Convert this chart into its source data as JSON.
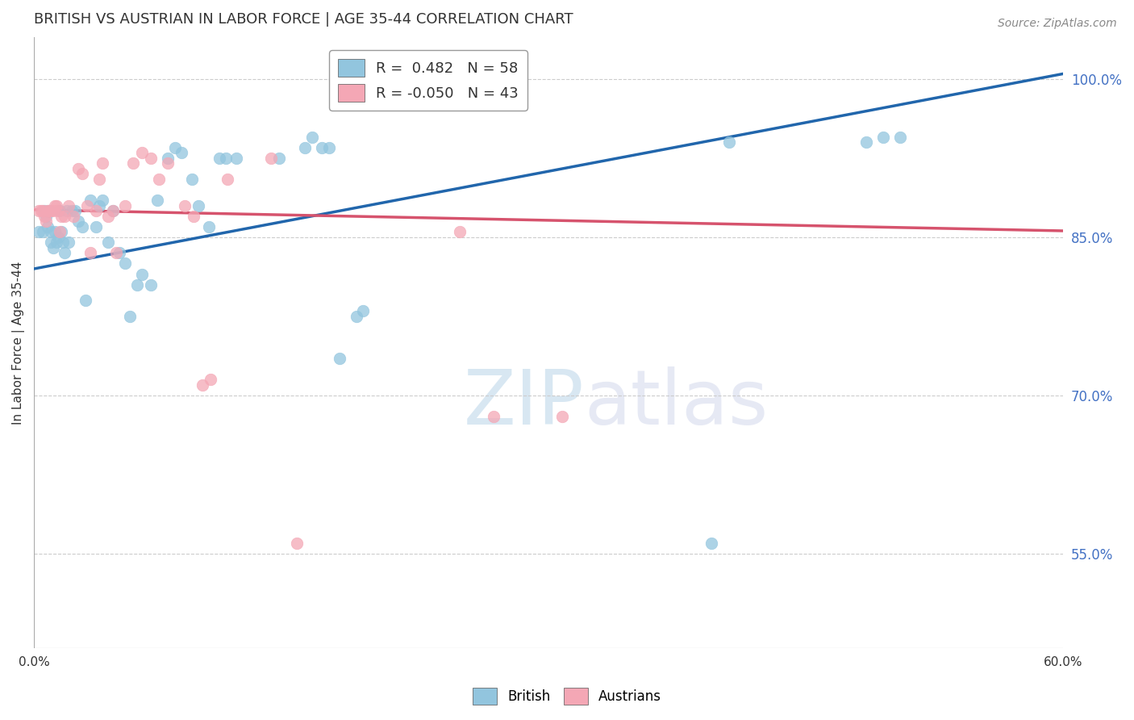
{
  "title": "BRITISH VS AUSTRIAN IN LABOR FORCE | AGE 35-44 CORRELATION CHART",
  "source": "Source: ZipAtlas.com",
  "ylabel": "In Labor Force | Age 35-44",
  "xlim": [
    0.0,
    0.6
  ],
  "ylim": [
    0.46,
    1.04
  ],
  "ytick_right": [
    0.55,
    0.7,
    0.85,
    1.0
  ],
  "ytick_right_labels": [
    "55.0%",
    "70.0%",
    "85.0%",
    "100.0%"
  ],
  "british_R": 0.482,
  "british_N": 58,
  "austrian_R": -0.05,
  "austrian_N": 43,
  "blue_color": "#92c5de",
  "pink_color": "#f4a7b5",
  "blue_line_color": "#2166ac",
  "pink_line_color": "#d6536d",
  "british_x": [
    0.003,
    0.005,
    0.006,
    0.007,
    0.008,
    0.009,
    0.01,
    0.01,
    0.011,
    0.012,
    0.013,
    0.014,
    0.015,
    0.016,
    0.017,
    0.018,
    0.019,
    0.02,
    0.022,
    0.024,
    0.026,
    0.028,
    0.03,
    0.033,
    0.036,
    0.038,
    0.04,
    0.043,
    0.046,
    0.05,
    0.053,
    0.056,
    0.06,
    0.063,
    0.068,
    0.072,
    0.078,
    0.082,
    0.086,
    0.092,
    0.096,
    0.102,
    0.108,
    0.112,
    0.118,
    0.143,
    0.158,
    0.162,
    0.168,
    0.172,
    0.178,
    0.188,
    0.192,
    0.395,
    0.405,
    0.485,
    0.495,
    0.505
  ],
  "british_y": [
    0.855,
    0.855,
    0.875,
    0.87,
    0.86,
    0.875,
    0.855,
    0.845,
    0.84,
    0.855,
    0.845,
    0.85,
    0.875,
    0.855,
    0.845,
    0.835,
    0.875,
    0.845,
    0.875,
    0.875,
    0.865,
    0.86,
    0.79,
    0.885,
    0.86,
    0.88,
    0.885,
    0.845,
    0.875,
    0.835,
    0.825,
    0.775,
    0.805,
    0.815,
    0.805,
    0.885,
    0.925,
    0.935,
    0.93,
    0.905,
    0.88,
    0.86,
    0.925,
    0.925,
    0.925,
    0.925,
    0.935,
    0.945,
    0.935,
    0.935,
    0.735,
    0.775,
    0.78,
    0.56,
    0.94,
    0.94,
    0.945,
    0.945
  ],
  "austrian_x": [
    0.003,
    0.004,
    0.005,
    0.006,
    0.007,
    0.008,
    0.009,
    0.01,
    0.011,
    0.012,
    0.013,
    0.014,
    0.015,
    0.016,
    0.018,
    0.02,
    0.023,
    0.026,
    0.028,
    0.031,
    0.033,
    0.036,
    0.038,
    0.04,
    0.043,
    0.046,
    0.048,
    0.053,
    0.058,
    0.063,
    0.068,
    0.073,
    0.078,
    0.088,
    0.093,
    0.098,
    0.103,
    0.113,
    0.138,
    0.153,
    0.248,
    0.268,
    0.308
  ],
  "austrian_y": [
    0.875,
    0.875,
    0.875,
    0.87,
    0.865,
    0.875,
    0.875,
    0.875,
    0.875,
    0.88,
    0.88,
    0.875,
    0.855,
    0.87,
    0.87,
    0.88,
    0.87,
    0.915,
    0.91,
    0.88,
    0.835,
    0.875,
    0.905,
    0.92,
    0.87,
    0.875,
    0.835,
    0.88,
    0.92,
    0.93,
    0.925,
    0.905,
    0.92,
    0.88,
    0.87,
    0.71,
    0.715,
    0.905,
    0.925,
    0.56,
    0.855,
    0.68,
    0.68
  ],
  "watermark_zip": "ZIP",
  "watermark_atlas": "atlas",
  "title_fontsize": 13,
  "label_fontsize": 11,
  "tick_fontsize": 11,
  "source_fontsize": 10
}
